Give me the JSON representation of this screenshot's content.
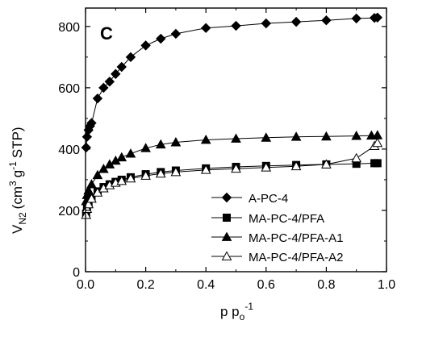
{
  "chart_data": {
    "type": "line",
    "panel_label": "C",
    "xlabel_main": "p p",
    "xlabel_sub": "o",
    "xlabel_sup": "-1",
    "ylabel_v": "V",
    "ylabel_sub": "N2",
    "ylabel_cm": "(cm",
    "ylabel_sup1": "3",
    "ylabel_g": "g",
    "ylabel_sup2": "-1",
    "ylabel_stp": "STP)",
    "xlim": [
      0.0,
      1.0
    ],
    "ylim": [
      0,
      860
    ],
    "x_ticks": [
      0.0,
      0.2,
      0.4,
      0.6,
      0.8,
      1.0
    ],
    "x_tick_labels": [
      "0.0",
      "0.2",
      "0.4",
      "0.6",
      "0.8",
      "1.0"
    ],
    "y_ticks": [
      0,
      200,
      400,
      600,
      800
    ],
    "y_tick_labels": [
      "0",
      "200",
      "400",
      "600",
      "800"
    ],
    "grid": false,
    "legend_position": "lower-right",
    "series": [
      {
        "name": "A-PC-4",
        "marker": "diamond-filled",
        "x": [
          0.002,
          0.005,
          0.01,
          0.015,
          0.02,
          0.04,
          0.06,
          0.08,
          0.1,
          0.12,
          0.15,
          0.2,
          0.25,
          0.3,
          0.4,
          0.5,
          0.6,
          0.7,
          0.8,
          0.9,
          0.96,
          0.97
        ],
        "y": [
          405,
          440,
          462,
          475,
          485,
          565,
          600,
          620,
          645,
          668,
          700,
          738,
          760,
          776,
          795,
          802,
          810,
          815,
          820,
          826,
          828,
          829
        ]
      },
      {
        "name": "MA-PC-4/PFA",
        "marker": "square-filled",
        "x": [
          0.002,
          0.005,
          0.01,
          0.02,
          0.04,
          0.06,
          0.08,
          0.1,
          0.12,
          0.15,
          0.2,
          0.25,
          0.3,
          0.4,
          0.5,
          0.6,
          0.7,
          0.8,
          0.9,
          0.96,
          0.97
        ],
        "y": [
          190,
          210,
          225,
          240,
          262,
          276,
          285,
          293,
          300,
          308,
          318,
          325,
          330,
          337,
          342,
          345,
          348,
          350,
          352,
          354,
          354
        ]
      },
      {
        "name": "MA-PC-4/PFA-A1",
        "marker": "triangle-filled",
        "x": [
          0.002,
          0.005,
          0.01,
          0.02,
          0.04,
          0.06,
          0.08,
          0.1,
          0.12,
          0.15,
          0.2,
          0.25,
          0.3,
          0.4,
          0.5,
          0.6,
          0.7,
          0.8,
          0.9,
          0.95,
          0.97
        ],
        "y": [
          230,
          250,
          265,
          285,
          315,
          335,
          350,
          362,
          373,
          385,
          403,
          415,
          422,
          430,
          434,
          437,
          440,
          441,
          443,
          444,
          445
        ]
      },
      {
        "name": "MA-PC-4/PFA-A2",
        "marker": "triangle-open",
        "x": [
          0.002,
          0.005,
          0.01,
          0.02,
          0.04,
          0.06,
          0.08,
          0.1,
          0.12,
          0.15,
          0.2,
          0.25,
          0.3,
          0.4,
          0.5,
          0.6,
          0.7,
          0.8,
          0.9,
          0.96,
          0.97
        ],
        "y": [
          185,
          205,
          220,
          238,
          258,
          272,
          282,
          290,
          296,
          304,
          313,
          320,
          325,
          332,
          336,
          340,
          344,
          350,
          370,
          410,
          420
        ]
      }
    ]
  }
}
